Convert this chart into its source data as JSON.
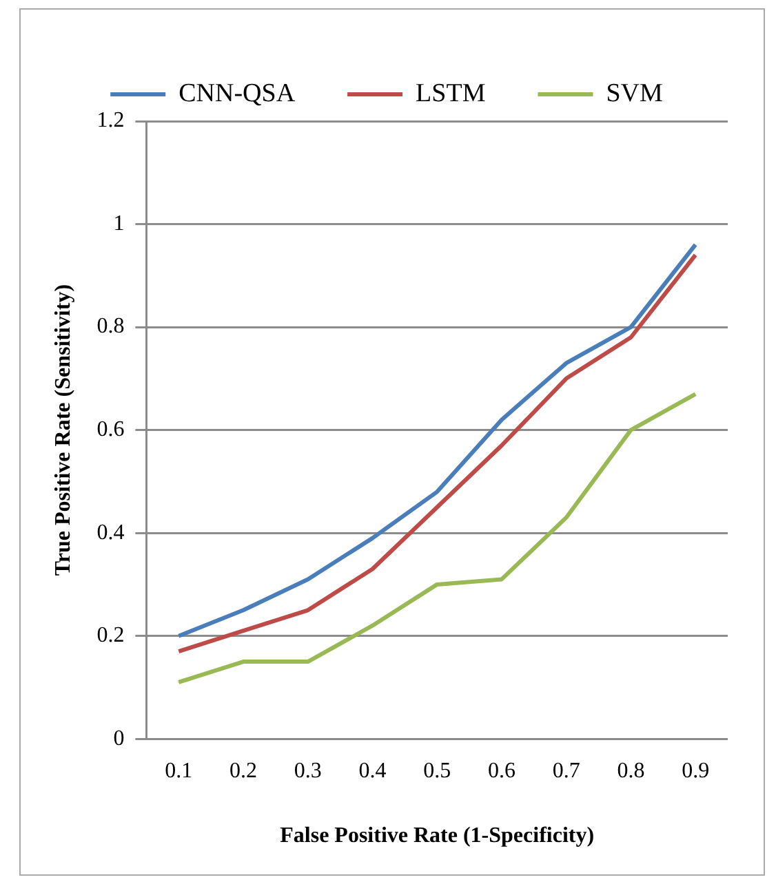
{
  "chart_data": {
    "type": "line",
    "xlabel": "False Positive Rate (1-Specificity)",
    "ylabel": "True Positive Rate (Sensitivity)",
    "categories": [
      "0.1",
      "0.2",
      "0.3",
      "0.4",
      "0.5",
      "0.6",
      "0.7",
      "0.8",
      "0.9"
    ],
    "series": [
      {
        "name": "CNN-QSA",
        "color": "#4a7ebb",
        "values": [
          0.2,
          0.25,
          0.31,
          0.39,
          0.48,
          0.62,
          0.73,
          0.8,
          0.96
        ]
      },
      {
        "name": "LSTM",
        "color": "#be4b48",
        "values": [
          0.17,
          0.21,
          0.25,
          0.33,
          0.45,
          0.57,
          0.7,
          0.78,
          0.94
        ]
      },
      {
        "name": "SVM",
        "color": "#98b954",
        "values": [
          0.11,
          0.15,
          0.15,
          0.22,
          0.3,
          0.31,
          0.43,
          0.6,
          0.67
        ]
      }
    ],
    "ylim": [
      0,
      1.2
    ],
    "yticks": [
      0,
      0.2,
      0.4,
      0.6,
      0.8,
      1,
      1.2
    ],
    "grid": "y",
    "legend": "top",
    "marker": "none",
    "line_style": "solid"
  }
}
